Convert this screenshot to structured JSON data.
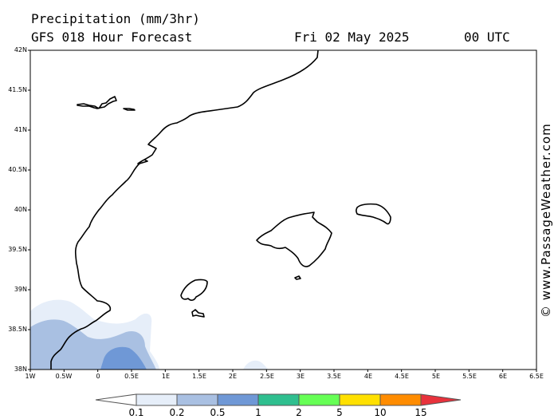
{
  "header": {
    "title": "Precipitation (mm/3hr)",
    "model": "GFS 018 Hour Forecast",
    "date": "Fri 02 May 2025",
    "time": "00 UTC"
  },
  "credit": "© www.PassageWeather.com",
  "lat_labels": [
    "42N",
    "41.5N",
    "41N",
    "40.5N",
    "40N",
    "39.5N",
    "39N",
    "38.5N",
    "38N"
  ],
  "lon_labels": [
    "1W",
    "0.5W",
    "0",
    "0.5E",
    "1E",
    "1.5E",
    "2E",
    "2.5E",
    "3E",
    "3.5E",
    "4E",
    "4.5E",
    "5E",
    "5.5E",
    "6E",
    "6.5E"
  ],
  "legend": {
    "values": [
      "0.1",
      "0.2",
      "0.5",
      "1",
      "2",
      "5",
      "10",
      "15"
    ],
    "colors": [
      "#ffffff",
      "#e6eef9",
      "#a9c0e2",
      "#6f98d6",
      "#2fbf8f",
      "#66ff55",
      "#ffe000",
      "#ff8c00",
      "#e8323c"
    ]
  }
}
